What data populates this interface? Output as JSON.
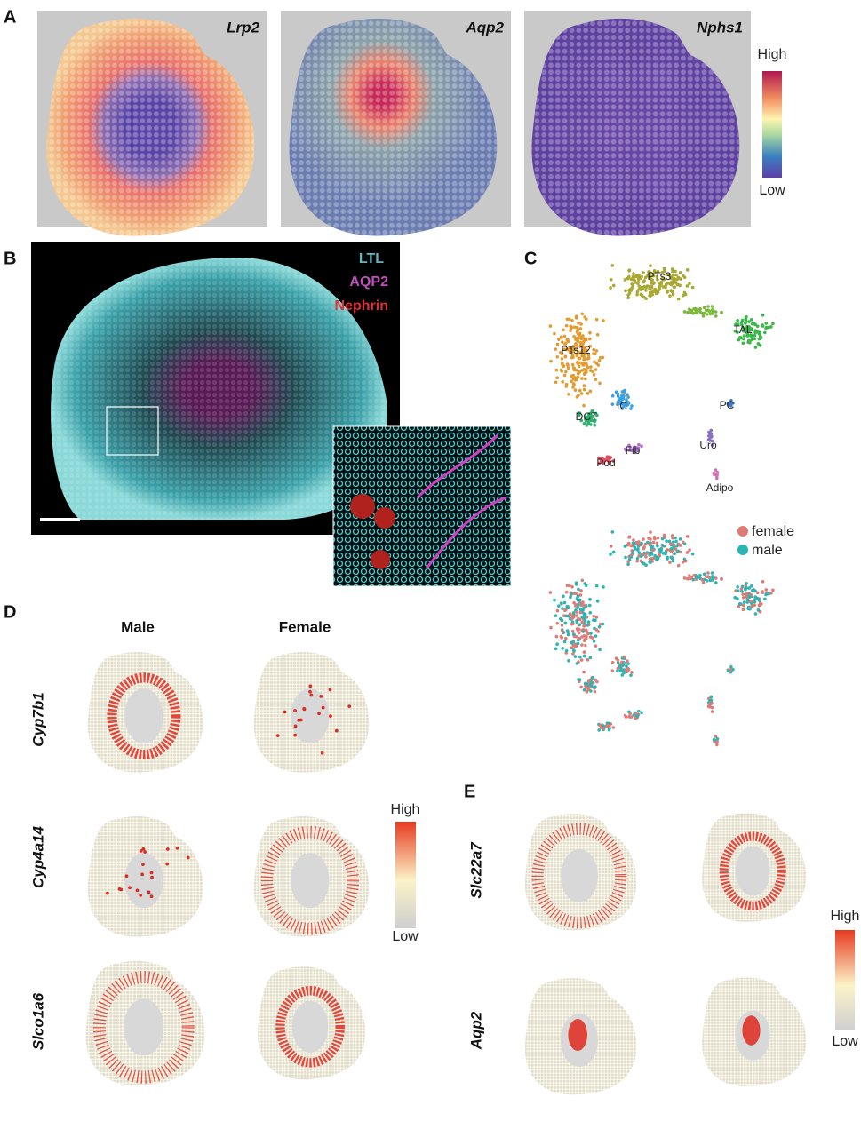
{
  "panels": {
    "A": {
      "label": "A",
      "genes": [
        "Lrp2",
        "Aqp2",
        "Nphs1"
      ],
      "scale": {
        "high": "High",
        "low": "Low"
      }
    },
    "B": {
      "label": "B",
      "stains": [
        "LTL",
        "AQP2",
        "Nephrin"
      ]
    },
    "C": {
      "label": "C",
      "clusters": [
        "PTs3",
        "TAL",
        "PTs12",
        "IC",
        "DCT",
        "PC",
        "Uro",
        "Fib",
        "Pod",
        "Adipo"
      ],
      "legend": [
        "female",
        "male"
      ]
    },
    "D": {
      "label": "D",
      "columns": [
        "Male",
        "Female"
      ],
      "genes": [
        "Cyp7b1",
        "Cyp4a14",
        "Slco1a6"
      ],
      "scale": {
        "high": "High",
        "low": "Low"
      }
    },
    "E": {
      "label": "E",
      "genes": [
        "Slc22a7",
        "Aqp2"
      ],
      "scale": {
        "high": "High",
        "low": "Low"
      }
    }
  }
}
